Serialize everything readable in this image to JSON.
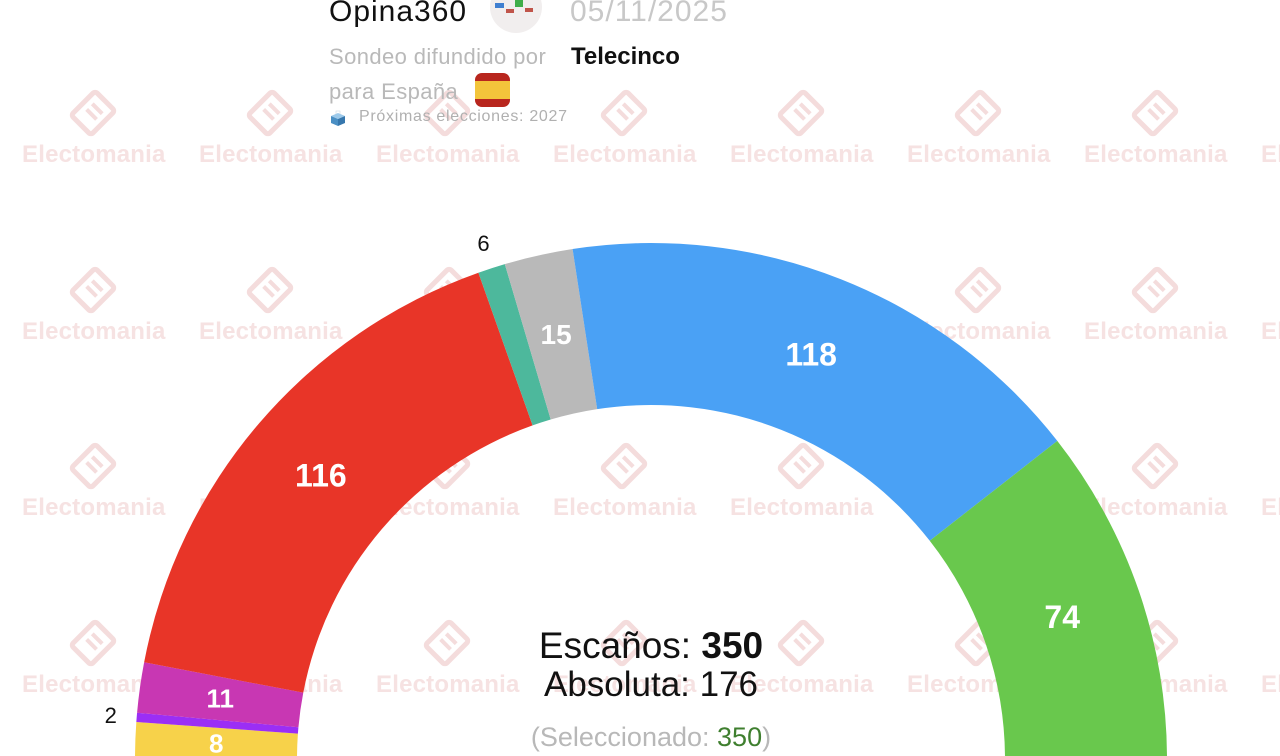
{
  "header": {
    "pollster": "Opina360",
    "date": "05/11/2025",
    "broadcast_prefix": "Sondeo difundido por",
    "broadcaster": "Telecinco",
    "region_label": "para España",
    "flag_icon": "spain-flag-icon",
    "next_elections_icon": "ballot-box-icon",
    "next_elections": "Próximas elecciones: 2027",
    "logo_icon": "pollster-logo-icon",
    "logo_bar_colors": [
      "#3f7fd0",
      "#c0544a",
      "#3fae4a",
      "#c0544a"
    ]
  },
  "watermark": {
    "text": "Electomania",
    "icon": "electomania-logo-icon",
    "color": "#f6e2e2"
  },
  "summary": {
    "seats_label": "Escaños:",
    "seats_value": "350",
    "majority_label": "Absoluta: 176",
    "selected_prefix": "(Seleccionado: ",
    "selected_value": "350",
    "selected_suffix": ")"
  },
  "chart_data": {
    "type": "pie",
    "variant": "semicircle-donut",
    "title": "Escaños: 350",
    "subtitle": "Absoluta: 176",
    "total_seats": 350,
    "majority": 176,
    "selected": 350,
    "start": "left",
    "values": [
      8,
      2,
      11,
      116,
      6,
      15,
      118,
      74
    ],
    "segments": [
      {
        "color_name": "yellow",
        "color": "#F7D24A",
        "value": 8,
        "label": "8",
        "label_position": "inside"
      },
      {
        "color_name": "purple",
        "color": "#9B2EF5",
        "value": 2,
        "label": "2",
        "label_position": "outside"
      },
      {
        "color_name": "magenta",
        "color": "#C837B3",
        "value": 11,
        "label": "11",
        "label_position": "inside"
      },
      {
        "color_name": "red",
        "color": "#E83528",
        "value": 116,
        "label": "116",
        "label_position": "inside"
      },
      {
        "color_name": "teal",
        "color": "#4DB89C",
        "value": 6,
        "label": "6",
        "label_position": "outside"
      },
      {
        "color_name": "gray",
        "color": "#B9B9B9",
        "value": 15,
        "label": "15",
        "label_position": "inside"
      },
      {
        "color_name": "blue",
        "color": "#4AA1F5",
        "value": 118,
        "label": "118",
        "label_position": "inside"
      },
      {
        "color_name": "green",
        "color": "#69C84D",
        "value": 74,
        "label": "74",
        "label_position": "inside"
      }
    ],
    "legend": "none",
    "grid": false
  }
}
